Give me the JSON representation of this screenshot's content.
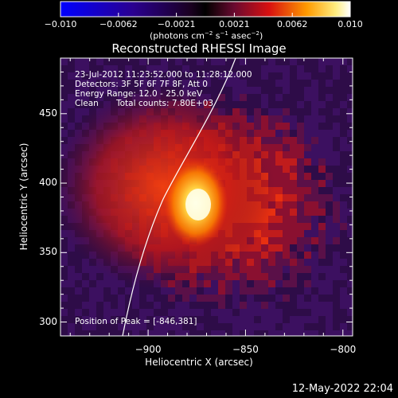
{
  "colorbar": {
    "ticks": [
      "−0.010",
      "−0.0062",
      "−0.0021",
      "0.0021",
      "0.0062",
      "0.010"
    ],
    "unit_prefix": "(photons cm",
    "unit_exp1": "−2",
    "unit_mid1": " s",
    "unit_exp2": "−1",
    "unit_mid2": " asec",
    "unit_exp3": "−2",
    "unit_suffix": ")"
  },
  "chart_data": {
    "type": "heatmap",
    "title": "Reconstructed RHESSI Image",
    "xlabel": "Heliocentric X (arcsec)",
    "ylabel": "Heliocentric Y (arcsec)",
    "xlim": [
      -945,
      -795
    ],
    "ylim": [
      290,
      490
    ],
    "x_ticks": [
      -900,
      -850,
      -800
    ],
    "y_ticks": [
      300,
      350,
      400,
      450
    ],
    "x_tick_labels": [
      "−900",
      "−850",
      "−800"
    ],
    "y_tick_labels": [
      "300",
      "350",
      "400",
      "450"
    ],
    "color_range": [
      -0.01,
      0.01
    ],
    "peak": [
      -846,
      381
    ],
    "annotations": {
      "time": "23-Jul-2012 11:23:52.000 to 11:28:12.000",
      "detectors": "Detectors: 3F 5F 6F 7F 8F, Att 0",
      "energy": "Energy Range: 12.0 - 25.0 keV",
      "method": "Clean",
      "counts": "Total counts: 7.80E+03",
      "peak_text": "Position of Peak = [-846,381]"
    }
  },
  "footer": {
    "timestamp": "12-May-2022 22:04"
  }
}
